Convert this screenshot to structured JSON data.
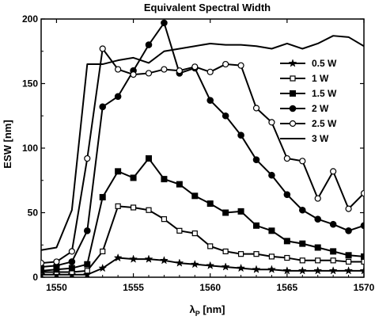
{
  "chart_data": {
    "type": "line",
    "title": "Equivalent Spectral Width",
    "xlabel_main": "λ",
    "xlabel_sub": "P",
    "xlabel_unit": " [nm]",
    "ylabel": "ESW [nm]",
    "xlim": [
      1549,
      1570
    ],
    "ylim": [
      0,
      200
    ],
    "xticks": [
      1550,
      1555,
      1560,
      1565,
      1570
    ],
    "yticks": [
      0,
      50,
      100,
      150,
      200
    ],
    "grid": false,
    "legend_position": "right",
    "series": [
      {
        "name": "0.5 W",
        "marker": "star",
        "x": [
          1549,
          1550,
          1551,
          1552,
          1553,
          1554,
          1555,
          1556,
          1557,
          1558,
          1559,
          1560,
          1561,
          1562,
          1563,
          1564,
          1565,
          1566,
          1567,
          1568,
          1569,
          1570
        ],
        "y": [
          2,
          2,
          2,
          2,
          7,
          15,
          14,
          14,
          13,
          11,
          10,
          9,
          8,
          7,
          6,
          6,
          5,
          5,
          5,
          5,
          5,
          5
        ]
      },
      {
        "name": "1 W",
        "marker": "square-open",
        "x": [
          1549,
          1550,
          1551,
          1552,
          1553,
          1554,
          1555,
          1556,
          1557,
          1558,
          1559,
          1560,
          1561,
          1562,
          1563,
          1564,
          1565,
          1566,
          1567,
          1568,
          1569,
          1570
        ],
        "y": [
          4,
          4,
          4,
          5,
          20,
          55,
          54,
          52,
          45,
          36,
          34,
          24,
          20,
          18,
          18,
          16,
          15,
          13,
          13,
          13,
          12,
          12
        ]
      },
      {
        "name": "1.5 W",
        "marker": "square-filled",
        "x": [
          1549,
          1550,
          1551,
          1552,
          1553,
          1554,
          1555,
          1556,
          1557,
          1558,
          1559,
          1560,
          1561,
          1562,
          1563,
          1564,
          1565,
          1566,
          1567,
          1568,
          1569,
          1570
        ],
        "y": [
          5,
          6,
          7,
          10,
          62,
          82,
          77,
          92,
          76,
          72,
          63,
          57,
          50,
          51,
          40,
          36,
          28,
          26,
          23,
          20,
          17,
          16
        ]
      },
      {
        "name": "2 W",
        "marker": "circle-filled",
        "x": [
          1549,
          1550,
          1551,
          1552,
          1553,
          1554,
          1555,
          1556,
          1557,
          1558,
          1559,
          1560,
          1561,
          1562,
          1563,
          1564,
          1565,
          1566,
          1567,
          1568,
          1569,
          1570
        ],
        "y": [
          8,
          9,
          12,
          36,
          132,
          140,
          160,
          180,
          197,
          158,
          162,
          137,
          125,
          110,
          91,
          79,
          64,
          52,
          45,
          41,
          36,
          40
        ]
      },
      {
        "name": "2.5 W",
        "marker": "circle-open",
        "x": [
          1549,
          1550,
          1551,
          1552,
          1553,
          1554,
          1555,
          1556,
          1557,
          1558,
          1559,
          1560,
          1561,
          1562,
          1563,
          1564,
          1565,
          1566,
          1567,
          1568,
          1569,
          1570
        ],
        "y": [
          11,
          12,
          20,
          92,
          177,
          161,
          157,
          158,
          161,
          160,
          163,
          159,
          165,
          164,
          131,
          120,
          92,
          90,
          61,
          82,
          53,
          65
        ]
      },
      {
        "name": "3 W",
        "marker": "none",
        "x": [
          1549,
          1550,
          1551,
          1552,
          1553,
          1554,
          1555,
          1556,
          1557,
          1558,
          1559,
          1560,
          1561,
          1562,
          1563,
          1564,
          1565,
          1566,
          1567,
          1568,
          1569,
          1570
        ],
        "y": [
          21,
          23,
          52,
          165,
          165,
          168,
          170,
          166,
          175,
          177,
          179,
          181,
          180,
          180,
          179,
          177,
          181,
          177,
          181,
          187,
          186,
          179
        ]
      }
    ]
  }
}
